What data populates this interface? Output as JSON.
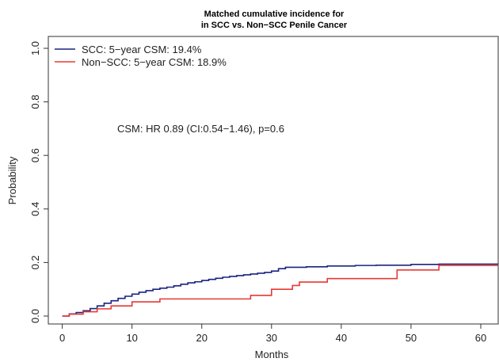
{
  "chart_data": {
    "type": "line",
    "title_line1": "Matched cumulative incidence for",
    "title_line2": "in SCC vs. Non−SCC Penile Cancer",
    "xlabel": "Months",
    "ylabel": "Probability",
    "xlim": [
      -2,
      62.5
    ],
    "ylim": [
      0,
      1.0
    ],
    "x_ticks": [
      0,
      10,
      20,
      30,
      40,
      50,
      60
    ],
    "y_ticks": [
      0.0,
      0.2,
      0.4,
      0.6,
      0.8,
      1.0
    ],
    "y_tick_labels": [
      "0.0",
      "0.2",
      "0.4",
      "0.6",
      "0.8",
      "1.0"
    ],
    "grid": false,
    "legend_position": "top-left",
    "annotation": "CSM: HR 0.89 (CI:0.54−1.46), p=0.6",
    "series": [
      {
        "name": "SCC: 5−year CSM: 19.4%",
        "color": "#1a237e",
        "step": true,
        "x": [
          0,
          1,
          2,
          3,
          4,
          5,
          6,
          7,
          8,
          9,
          10,
          11,
          12,
          13,
          14,
          15,
          16,
          17,
          18,
          19,
          20,
          21,
          22,
          23,
          24,
          25,
          26,
          27,
          28,
          29,
          30,
          31,
          32,
          35,
          38,
          42,
          45,
          50,
          54,
          62.5
        ],
        "y": [
          0.0,
          0.008,
          0.013,
          0.02,
          0.028,
          0.038,
          0.048,
          0.057,
          0.066,
          0.074,
          0.082,
          0.089,
          0.095,
          0.1,
          0.104,
          0.108,
          0.113,
          0.119,
          0.124,
          0.128,
          0.133,
          0.137,
          0.141,
          0.145,
          0.148,
          0.151,
          0.154,
          0.157,
          0.16,
          0.163,
          0.168,
          0.177,
          0.182,
          0.184,
          0.187,
          0.189,
          0.19,
          0.193,
          0.194,
          0.194
        ]
      },
      {
        "name": "Non−SCC: 5−year CSM: 18.9%",
        "color": "#e53935",
        "step": true,
        "x": [
          0,
          1,
          3,
          5,
          7,
          10,
          14,
          27,
          30,
          33,
          34,
          38,
          48,
          54,
          62.5
        ],
        "y": [
          0.0,
          0.007,
          0.016,
          0.027,
          0.038,
          0.053,
          0.064,
          0.077,
          0.1,
          0.114,
          0.127,
          0.14,
          0.172,
          0.189,
          0.189
        ]
      }
    ]
  }
}
